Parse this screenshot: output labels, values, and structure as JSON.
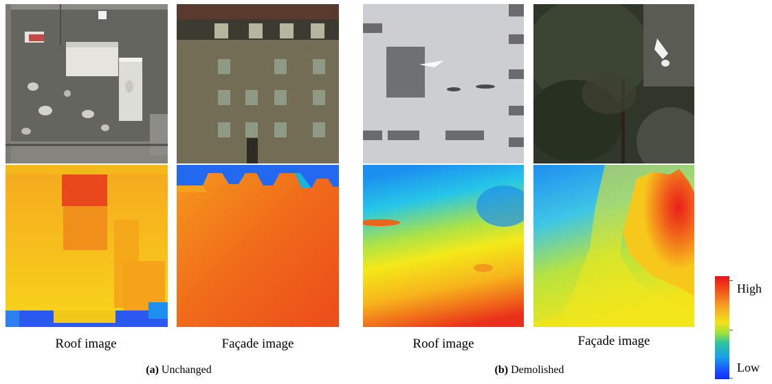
{
  "groups": [
    {
      "label_bold": "(a)",
      "label_text": " Unchanged",
      "captions": [
        "Roof image",
        "Façade image"
      ]
    },
    {
      "label_bold": "(b)",
      "label_text": " Demolished",
      "captions": [
        "Roof image",
        "Façade image"
      ]
    }
  ],
  "colorbar": {
    "high_label": "High",
    "low_label": "Low",
    "colors": [
      "#e8141b",
      "#f5a623",
      "#f2e31a",
      "#2cc3a0",
      "#1aa3e8",
      "#1230ff"
    ]
  }
}
